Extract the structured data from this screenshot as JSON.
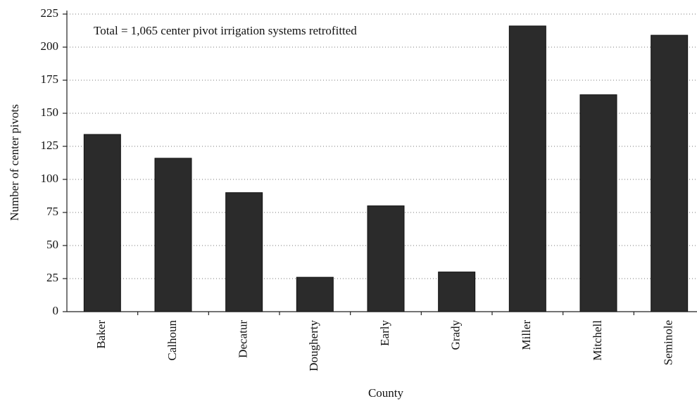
{
  "chart_data": {
    "type": "bar",
    "annotation": "Total = 1,065 center pivot irrigation systems retrofitted",
    "x_label": "County",
    "y_label": "Number of center pivots",
    "categories": [
      "Baker",
      "Calhoun",
      "Decatur",
      "Dougherty",
      "Early",
      "Grady",
      "Miller",
      "Mitchell",
      "Seminole"
    ],
    "values": [
      134,
      116,
      90,
      26,
      80,
      30,
      216,
      164,
      209
    ],
    "color": "#2b2b2b",
    "ylim": [
      0,
      225
    ],
    "yticks": [
      0,
      25,
      50,
      75,
      100,
      125,
      150,
      175,
      200,
      225
    ],
    "grid": true
  }
}
